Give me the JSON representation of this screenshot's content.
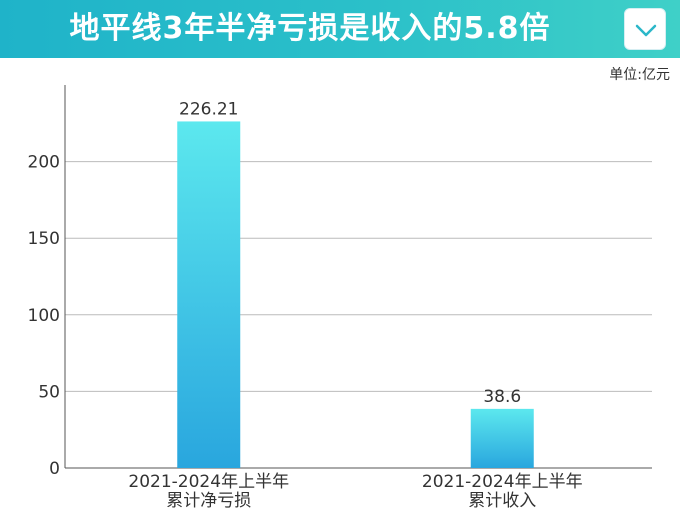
{
  "header": {
    "title": "地平线3年半净亏损是收入的5.8倍",
    "dropdown_icon": "chevron-down-icon"
  },
  "unit": "单位:亿元",
  "colors": {
    "header_gradient_start": "#1fb3c9",
    "header_gradient_end": "#3fd0c8",
    "bar_top": "#5ce8ee",
    "bar_bottom": "#29a6de",
    "grid": "#bbbbbb",
    "axis": "#555555"
  },
  "chart_data": {
    "type": "bar",
    "categories": [
      [
        "2021-2024年上半年",
        "累计净亏损"
      ],
      [
        "2021-2024年上半年",
        "累计收入"
      ]
    ],
    "values": [
      226.21,
      38.6
    ],
    "value_labels": [
      "226.21",
      "38.6"
    ],
    "ylim": [
      0,
      250
    ],
    "yticks": [
      0,
      50,
      100,
      150,
      200
    ],
    "grid": true,
    "xlabel": "",
    "ylabel": ""
  }
}
